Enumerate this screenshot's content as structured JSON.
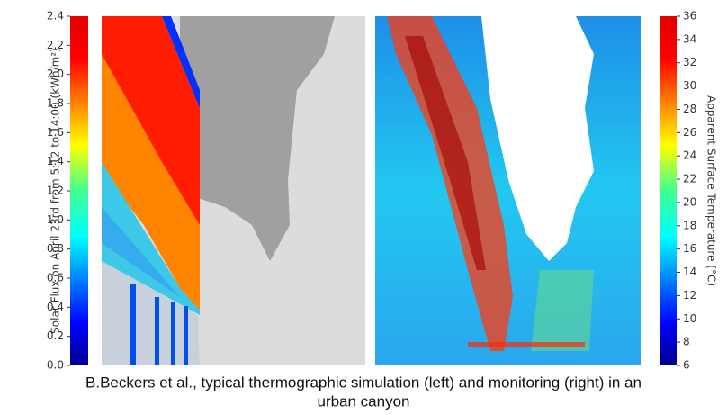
{
  "left_colorbar": {
    "label": "Solar Flux on April 23rd from 5:12 to 14:00 (kWh/m²)",
    "lim": [
      0,
      2.4
    ],
    "ticks": [
      {
        "value": 0,
        "label": "0.0"
      },
      0.2,
      0.4,
      0.6,
      0.8,
      {
        "value": 1,
        "label": "1.0"
      },
      1.2,
      1.4,
      1.6,
      1.8,
      {
        "value": 2,
        "label": "2.0"
      },
      2.2,
      2.4
    ]
  },
  "right_colorbar": {
    "label": "Apparent Surface Temperature (°C)",
    "lim": [
      6,
      36
    ],
    "ticks": [
      6,
      8,
      10,
      12,
      14,
      16,
      18,
      20,
      22,
      24,
      26,
      28,
      30,
      32,
      34,
      36
    ]
  },
  "caption": {
    "line1": "B.Beckers et al., typical thermographic simulation (left) and monitoring (right) in an",
    "line2": "urban canyon"
  }
}
